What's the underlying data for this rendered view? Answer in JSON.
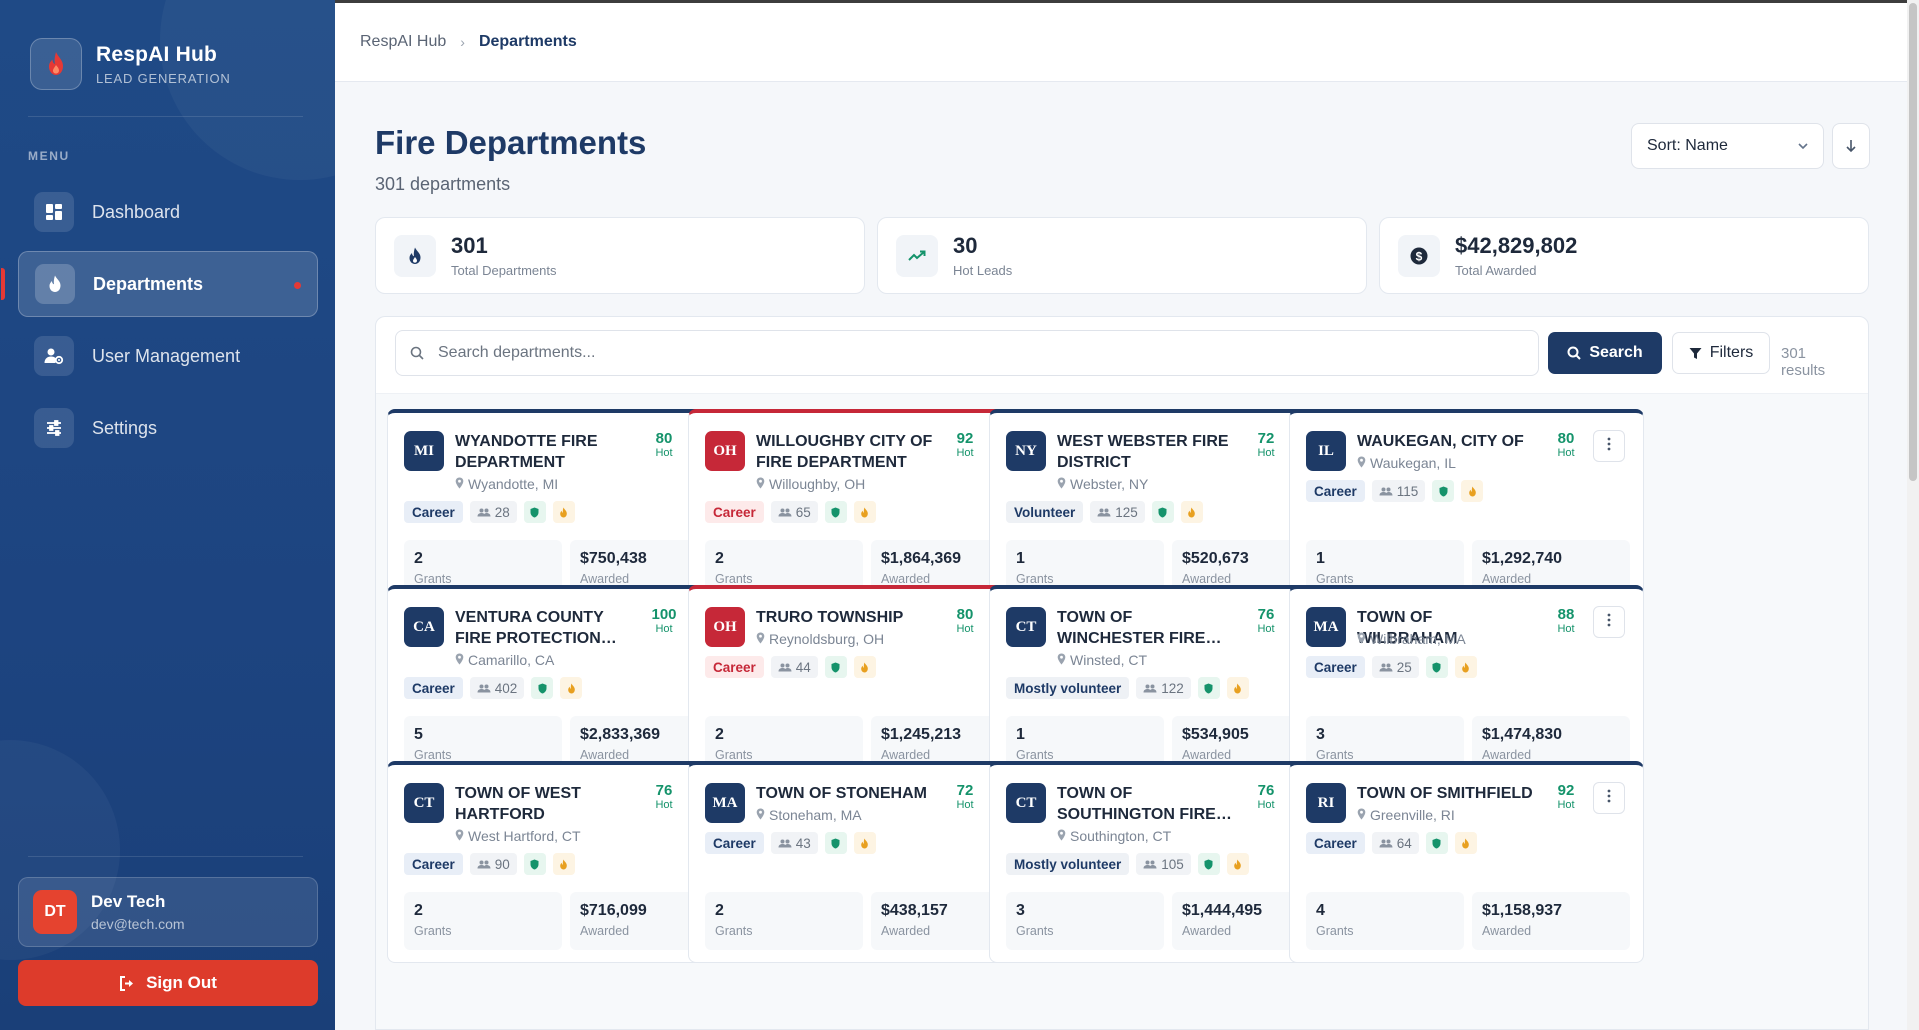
{
  "brand": {
    "title": "RespAI Hub",
    "subtitle": "LEAD GENERATION"
  },
  "sidebar": {
    "menu_heading": "MENU",
    "items": [
      {
        "label": "Dashboard",
        "icon": "dashboard-icon",
        "active": false
      },
      {
        "label": "Departments",
        "icon": "flame-icon",
        "active": true
      },
      {
        "label": "User Management",
        "icon": "users-cog-icon",
        "active": false
      },
      {
        "label": "Settings",
        "icon": "sliders-icon",
        "active": false
      }
    ],
    "user": {
      "initials": "DT",
      "name": "Dev Tech",
      "email": "dev@tech.com"
    },
    "signout_label": "Sign Out"
  },
  "breadcrumb": {
    "root": "RespAI Hub",
    "current": "Departments"
  },
  "page": {
    "title": "Fire Departments",
    "subtitle": "301 departments",
    "sort_label": "Sort: Name"
  },
  "stats": [
    {
      "value": "301",
      "label": "Total Departments",
      "icon": "flame-icon"
    },
    {
      "value": "30",
      "label": "Hot Leads",
      "icon": "trending-up-icon"
    },
    {
      "value": "$42,829,802",
      "label": "Total Awarded",
      "icon": "dollar-icon"
    }
  ],
  "search": {
    "placeholder": "Search departments...",
    "value": "",
    "button_label": "Search",
    "filters_label": "Filters",
    "results": "301 results"
  },
  "colors": {
    "navy": "#1e3a66",
    "red": "#c62838",
    "hot_green": "#15936b",
    "signout": "#dd3b2b"
  },
  "cards": [
    {
      "state": "MI",
      "name": "WYANDOTTE FIRE DEPARTMENT",
      "location": "Wyandotte, MI",
      "score": "80",
      "score_label": "Hot",
      "type": "Career",
      "count": "28",
      "grants": "2",
      "grants_label": "Grants",
      "awarded": "$750,438",
      "awarded_label": "Awarded",
      "accent": "navy"
    },
    {
      "state": "OH",
      "name": "WILLOUGHBY CITY OF FIRE DEPARTMENT",
      "location": "Willoughby, OH",
      "score": "92",
      "score_label": "Hot",
      "type": "Career",
      "count": "65",
      "grants": "2",
      "grants_label": "Grants",
      "awarded": "$1,864,369",
      "awarded_label": "Awarded",
      "accent": "red"
    },
    {
      "state": "NY",
      "name": "WEST WEBSTER FIRE DISTRICT",
      "location": "Webster, NY",
      "score": "72",
      "score_label": "Hot",
      "type": "Volunteer",
      "count": "125",
      "grants": "1",
      "grants_label": "Grants",
      "awarded": "$520,673",
      "awarded_label": "Awarded",
      "accent": "navy"
    },
    {
      "state": "IL",
      "name": "WAUKEGAN, CITY OF",
      "location": "Waukegan, IL",
      "score": "80",
      "score_label": "Hot",
      "type": "Career",
      "count": "115",
      "grants": "1",
      "grants_label": "Grants",
      "awarded": "$1,292,740",
      "awarded_label": "Awarded",
      "accent": "navy"
    },
    {
      "state": "CA",
      "name": "VENTURA COUNTY FIRE PROTECTION DISTRICT",
      "location": "Camarillo, CA",
      "score": "100",
      "score_label": "Hot",
      "type": "Career",
      "count": "402",
      "grants": "5",
      "grants_label": "Grants",
      "awarded": "$2,833,369",
      "awarded_label": "Awarded",
      "accent": "navy"
    },
    {
      "state": "OH",
      "name": "TRURO TOWNSHIP",
      "location": "Reynoldsburg, OH",
      "score": "80",
      "score_label": "Hot",
      "type": "Career",
      "count": "44",
      "grants": "2",
      "grants_label": "Grants",
      "awarded": "$1,245,213",
      "awarded_label": "Awarded",
      "accent": "red"
    },
    {
      "state": "CT",
      "name": "TOWN OF WINCHESTER FIRE DEPARTMENT",
      "location": "Winsted, CT",
      "score": "76",
      "score_label": "Hot",
      "type": "Mostly volunteer",
      "count": "122",
      "grants": "1",
      "grants_label": "Grants",
      "awarded": "$534,905",
      "awarded_label": "Awarded",
      "accent": "navy"
    },
    {
      "state": "MA",
      "name": "TOWN OF WILBRAHAM",
      "location": "Wilbraham, MA",
      "score": "88",
      "score_label": "Hot",
      "type": "Career",
      "count": "25",
      "grants": "3",
      "grants_label": "Grants",
      "awarded": "$1,474,830",
      "awarded_label": "Awarded",
      "accent": "navy"
    },
    {
      "state": "CT",
      "name": "TOWN OF WEST HARTFORD",
      "location": "West Hartford, CT",
      "score": "76",
      "score_label": "Hot",
      "type": "Career",
      "count": "90",
      "grants": "2",
      "grants_label": "Grants",
      "awarded": "$716,099",
      "awarded_label": "Awarded",
      "accent": "navy"
    },
    {
      "state": "MA",
      "name": "TOWN OF STONEHAM",
      "location": "Stoneham, MA",
      "score": "72",
      "score_label": "Hot",
      "type": "Career",
      "count": "43",
      "grants": "2",
      "grants_label": "Grants",
      "awarded": "$438,157",
      "awarded_label": "Awarded",
      "accent": "navy"
    },
    {
      "state": "CT",
      "name": "TOWN OF SOUTHINGTON FIRE DEPARTMENT",
      "location": "Southington, CT",
      "score": "76",
      "score_label": "Hot",
      "type": "Mostly volunteer",
      "count": "105",
      "grants": "3",
      "grants_label": "Grants",
      "awarded": "$1,444,495",
      "awarded_label": "Awarded",
      "accent": "navy"
    },
    {
      "state": "RI",
      "name": "TOWN OF SMITHFIELD",
      "location": "Greenville, RI",
      "score": "92",
      "score_label": "Hot",
      "type": "Career",
      "count": "64",
      "grants": "4",
      "grants_label": "Grants",
      "awarded": "$1,158,937",
      "awarded_label": "Awarded",
      "accent": "navy"
    }
  ]
}
